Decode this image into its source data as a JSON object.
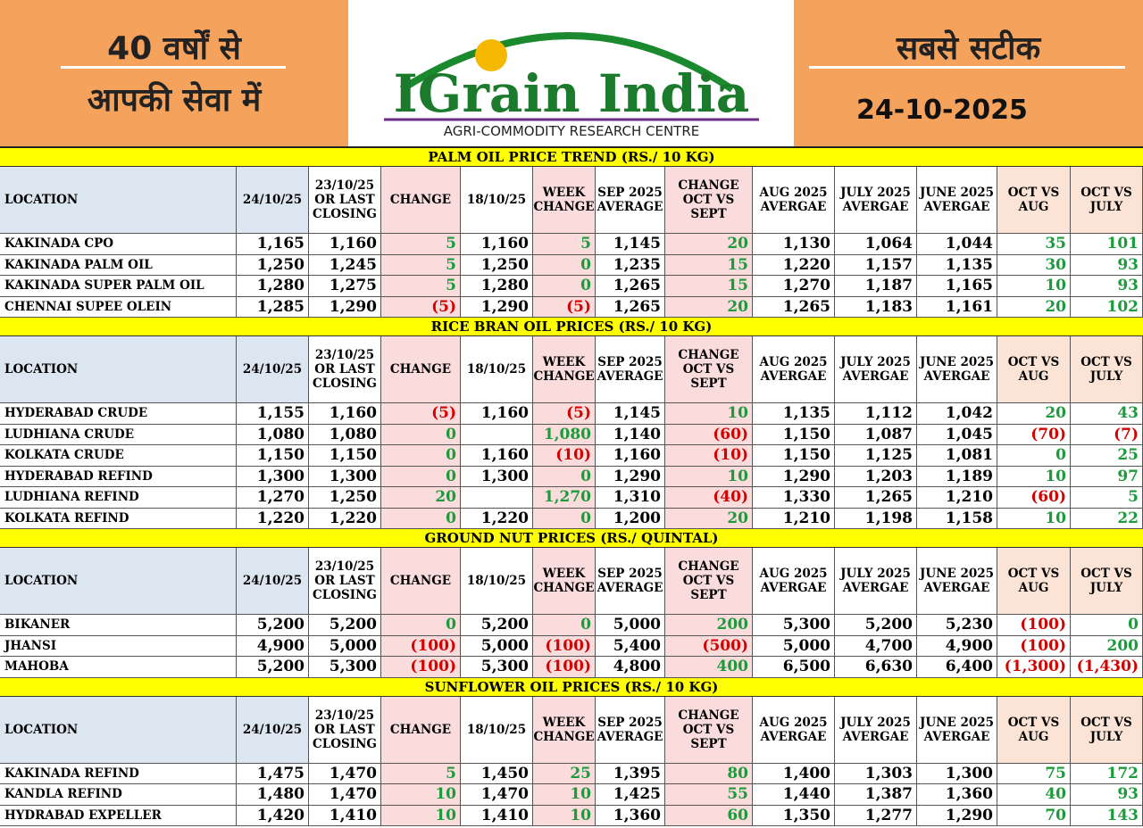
{
  "header": {
    "left_line1": "40 वर्षों से",
    "left_line2": "आपकी सेवा में",
    "logo_title": "IGrain India",
    "logo_subtitle": "AGRI-COMMODITY RESEARCH CENTRE",
    "right_line1": "सबसे सटीक",
    "date": "24-10-2025"
  },
  "sections": [
    {
      "title": "PALM OIL PRICE TREND (RS./ 10 KG)",
      "columns": [
        "LOCATION",
        "24/10/25",
        "23/10/25 OR LAST CLOSING",
        "CHANGE",
        "18/10/25",
        "WEEK CHANGE",
        "SEP 2025 AVERAGE",
        "CHANGE OCT VS SEPT",
        "AUG 2025 AVERGAE",
        "JULY 2025 AVERGAE",
        "JUNE 2025 AVERGAE",
        "OCT VS AUG",
        "OCT VS JULY"
      ],
      "rows": [
        [
          "KAKINADA CPO",
          "1,165",
          "1,160",
          "5",
          "1,160",
          "5",
          "1,145",
          "20",
          "1,130",
          "1,064",
          "1,044",
          "35",
          "101"
        ],
        [
          "KAKINADA PALM OIL",
          "1,250",
          "1,245",
          "5",
          "1,250",
          "0",
          "1,235",
          "15",
          "1,220",
          "1,157",
          "1,135",
          "30",
          "93"
        ],
        [
          "KAKINADA SUPER PALM OIL",
          "1,280",
          "1,275",
          "5",
          "1,280",
          "0",
          "1,265",
          "15",
          "1,270",
          "1,187",
          "1,165",
          "10",
          "93"
        ],
        [
          "CHENNAI SUPEE OLEIN",
          "1,285",
          "1,290",
          "(5)",
          "1,290",
          "(5)",
          "1,265",
          "20",
          "1,265",
          "1,183",
          "1,161",
          "20",
          "102"
        ]
      ]
    },
    {
      "title": "RICE BRAN OIL PRICES (RS./ 10 KG)",
      "columns": [
        "LOCATION",
        "24/10/25",
        "23/10/25 OR LAST CLOSING",
        "CHANGE",
        "18/10/25",
        "WEEK CHANGE",
        "SEP 2025 AVERAGE",
        "CHANGE OCT VS SEPT",
        "AUG 2025 AVERGAE",
        "JULY 2025 AVERGAE",
        "JUNE 2025 AVERGAE",
        "OCT VS AUG",
        "OCT VS JULY"
      ],
      "rows": [
        [
          "HYDERABAD CRUDE",
          "1,155",
          "1,160",
          "(5)",
          "1,160",
          "(5)",
          "1,145",
          "10",
          "1,135",
          "1,112",
          "1,042",
          "20",
          "43"
        ],
        [
          "LUDHIANA CRUDE",
          "1,080",
          "1,080",
          "0",
          null,
          "1,080",
          "1,140",
          "(60)",
          "1,150",
          "1,087",
          "1,045",
          "(70)",
          "(7)"
        ],
        [
          "KOLKATA CRUDE",
          "1,150",
          "1,150",
          "0",
          "1,160",
          "(10)",
          "1,160",
          "(10)",
          "1,150",
          "1,125",
          "1,081",
          "0",
          "25"
        ],
        [
          "HYDERABAD REFIND",
          "1,300",
          "1,300",
          "0",
          "1,300",
          "0",
          "1,290",
          "10",
          "1,290",
          "1,203",
          "1,189",
          "10",
          "97"
        ],
        [
          "LUDHIANA REFIND",
          "1,270",
          "1,250",
          "20",
          null,
          "1,270",
          "1,310",
          "(40)",
          "1,330",
          "1,265",
          "1,210",
          "(60)",
          "5"
        ],
        [
          "KOLKATA REFIND",
          "1,220",
          "1,220",
          "0",
          "1,220",
          "0",
          "1,200",
          "20",
          "1,210",
          "1,198",
          "1,158",
          "10",
          "22"
        ]
      ]
    },
    {
      "title": "GROUND NUT PRICES (RS./ QUINTAL)",
      "columns": [
        "LOCATION",
        "24/10/25",
        "23/10/25 OR LAST CLOSING",
        "CHANGE",
        "18/10/25",
        "WEEK CHANGE",
        "SEP 2025 AVERAGE",
        "CHANGE OCT VS SEPT",
        "AUG 2025 AVERGAE",
        "JULY 2025 AVERGAE",
        "JUNE 2025 AVERGAE",
        "OCT VS AUG",
        "OCT VS JULY"
      ],
      "rows": [
        [
          "BIKANER",
          "5,200",
          "5,200",
          "0",
          "5,200",
          "0",
          "5,000",
          "200",
          "5,300",
          "5,200",
          "5,230",
          "(100)",
          "0"
        ],
        [
          "JHANSI",
          "4,900",
          "5,000",
          "(100)",
          "5,000",
          "(100)",
          "5,400",
          "(500)",
          "5,000",
          "4,700",
          "4,900",
          "(100)",
          "200"
        ],
        [
          "MAHOBA",
          "5,200",
          "5,300",
          "(100)",
          "5,300",
          "(100)",
          "4,800",
          "400",
          "6,500",
          "6,630",
          "6,400",
          "(1,300)",
          "(1,430)"
        ]
      ]
    },
    {
      "title": "SUNFLOWER OIL PRICES (RS./ 10 KG)",
      "columns": [
        "LOCATION",
        "24/10/25",
        "23/10/25 OR LAST CLOSING",
        "CHANGE",
        "18/10/25",
        "WEEK CHANGE",
        "SEP 2025 AVERAGE",
        "CHANGE OCT VS SEPT",
        "AUG 2025 AVERGAE",
        "JULY 2025 AVERGAE",
        "JUNE 2025 AVERGAE",
        "OCT VS AUG",
        "OCT VS JULY"
      ],
      "rows": [
        [
          "KAKINADA REFIND",
          "1,475",
          "1,470",
          "5",
          "1,450",
          "25",
          "1,395",
          "80",
          "1,400",
          "1,303",
          "1,300",
          "75",
          "172"
        ],
        [
          "KANDLA REFIND",
          "1,480",
          "1,470",
          "10",
          "1,470",
          "10",
          "1,425",
          "55",
          "1,440",
          "1,387",
          "1,360",
          "40",
          "93"
        ],
        [
          "HYDRABAD EXPELLER",
          "1,420",
          "1,410",
          "10",
          "1,410",
          "10",
          "1,360",
          "60",
          "1,350",
          "1,277",
          "1,290",
          "70",
          "143"
        ]
      ]
    }
  ]
}
